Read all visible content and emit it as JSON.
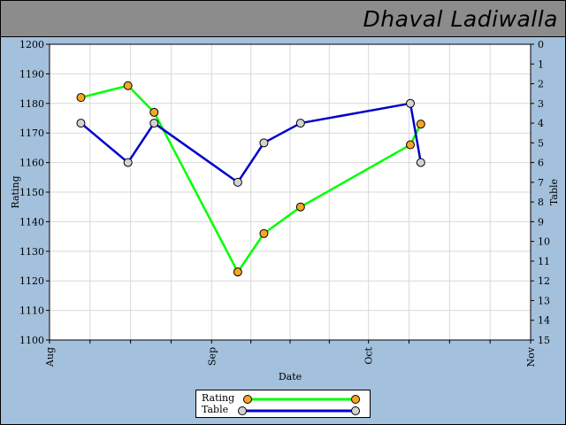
{
  "header": {
    "title": "Dhaval Ladiwalla"
  },
  "chart_data": {
    "type": "line",
    "xlabel": "Date",
    "ylabel_left": "Rating",
    "ylabel_right": "Table",
    "x_ticks": [
      "Aug",
      "Sep",
      "Oct",
      "Nov"
    ],
    "x_tick_days": [
      0,
      31,
      61,
      92
    ],
    "y_left_range": [
      1100,
      1200
    ],
    "y_left_ticks": [
      1100,
      1110,
      1120,
      1130,
      1140,
      1150,
      1160,
      1170,
      1180,
      1190,
      1200
    ],
    "y_right_range": [
      0,
      15
    ],
    "y_right_ticks": [
      0,
      1,
      2,
      3,
      4,
      5,
      6,
      7,
      8,
      9,
      10,
      11,
      12,
      13,
      14,
      15
    ],
    "grid": true,
    "legend_position": "bottom-center",
    "series": [
      {
        "name": "Rating",
        "axis": "left",
        "color": "#00ff00",
        "marker_color": "#f5a623",
        "x_days": [
          6,
          15,
          20,
          36,
          41,
          48,
          69,
          71
        ],
        "values": [
          1182,
          1186,
          1177,
          1123,
          1136,
          1145,
          1166,
          1173
        ]
      },
      {
        "name": "Table",
        "axis": "right",
        "color": "#0000cc",
        "marker_color": "#d3d3d3",
        "x_days": [
          6,
          15,
          20,
          36,
          41,
          48,
          69,
          71
        ],
        "values": [
          4,
          6,
          4,
          7,
          5,
          4,
          3,
          6
        ]
      }
    ]
  }
}
